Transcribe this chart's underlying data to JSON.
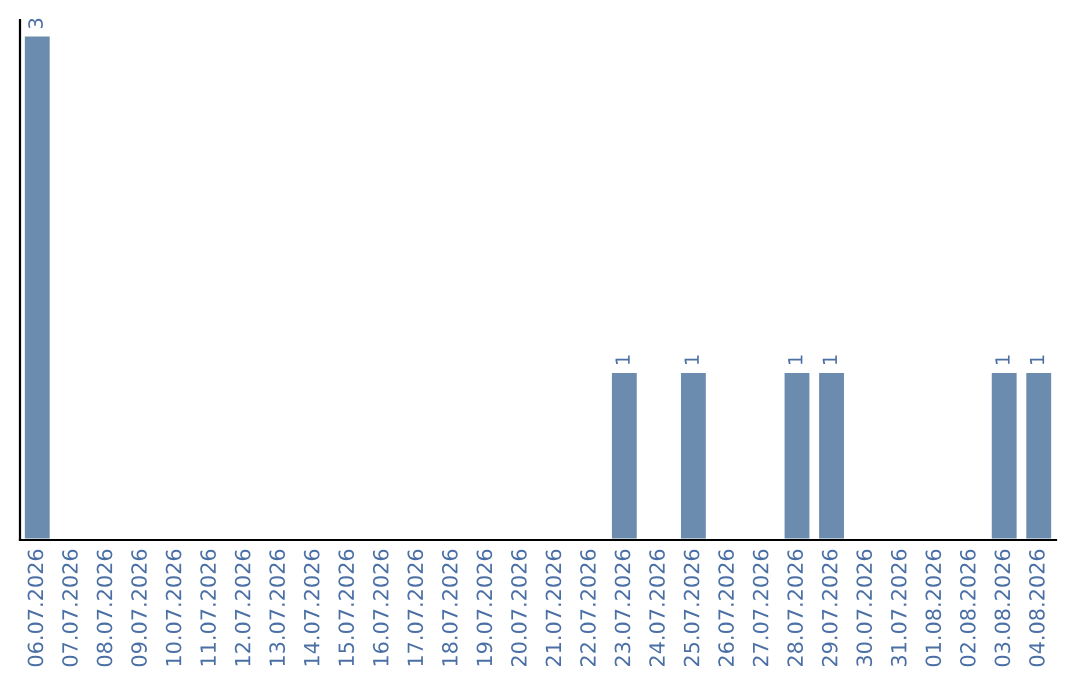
{
  "chart_data": {
    "type": "bar",
    "categories": [
      "06.07.2026",
      "07.07.2026",
      "08.07.2026",
      "09.07.2026",
      "10.07.2026",
      "11.07.2026",
      "12.07.2026",
      "13.07.2026",
      "14.07.2026",
      "15.07.2026",
      "16.07.2026",
      "17.07.2026",
      "18.07.2026",
      "19.07.2026",
      "20.07.2026",
      "21.07.2026",
      "22.07.2026",
      "23.07.2026",
      "24.07.2026",
      "25.07.2026",
      "26.07.2026",
      "27.07.2026",
      "28.07.2026",
      "29.07.2026",
      "30.07.2026",
      "31.07.2026",
      "01.08.2026",
      "02.08.2026",
      "03.08.2026",
      "04.08.2026"
    ],
    "values": [
      3,
      0,
      0,
      0,
      0,
      0,
      0,
      0,
      0,
      0,
      0,
      0,
      0,
      0,
      0,
      0,
      0,
      1,
      0,
      1,
      0,
      0,
      1,
      1,
      0,
      0,
      0,
      0,
      1,
      1
    ],
    "value_labels": [
      "3",
      null,
      null,
      null,
      null,
      null,
      null,
      null,
      null,
      null,
      null,
      null,
      null,
      null,
      null,
      null,
      null,
      "1",
      null,
      "1",
      null,
      null,
      "1",
      "1",
      null,
      null,
      null,
      null,
      "1",
      "1"
    ],
    "color": "#6b8cae",
    "grid": false,
    "legend": false
  }
}
